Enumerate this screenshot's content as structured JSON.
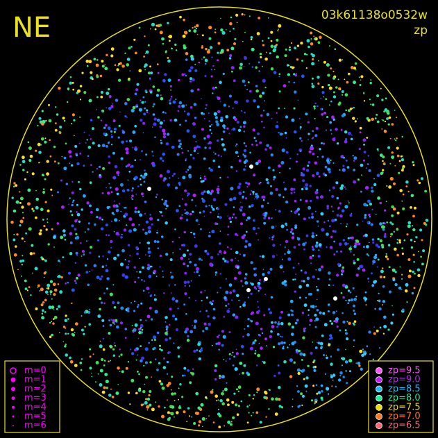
{
  "header": {
    "direction": "NE",
    "frame_id": "03k61138o0532w",
    "quantity": "zp"
  },
  "magnitude_legend": {
    "color": "#ff00ff",
    "items": [
      "m=0",
      "m=1",
      "m=2",
      "m=3",
      "m=4",
      "m=5",
      "m=6"
    ]
  },
  "zp_legend": {
    "items": [
      {
        "label": "zp=9.5",
        "color": "#ff55ff"
      },
      {
        "label": "zp=9.0",
        "color": "#bb22ff"
      },
      {
        "label": "zp=8.5",
        "color": "#22bbff"
      },
      {
        "label": "zp=8.0",
        "color": "#22ee99"
      },
      {
        "label": "zp=7.5",
        "color": "#eedd00"
      },
      {
        "label": "zp=7.0",
        "color": "#ff7722"
      },
      {
        "label": "zp=6.5",
        "color": "#ff6677"
      }
    ]
  }
}
